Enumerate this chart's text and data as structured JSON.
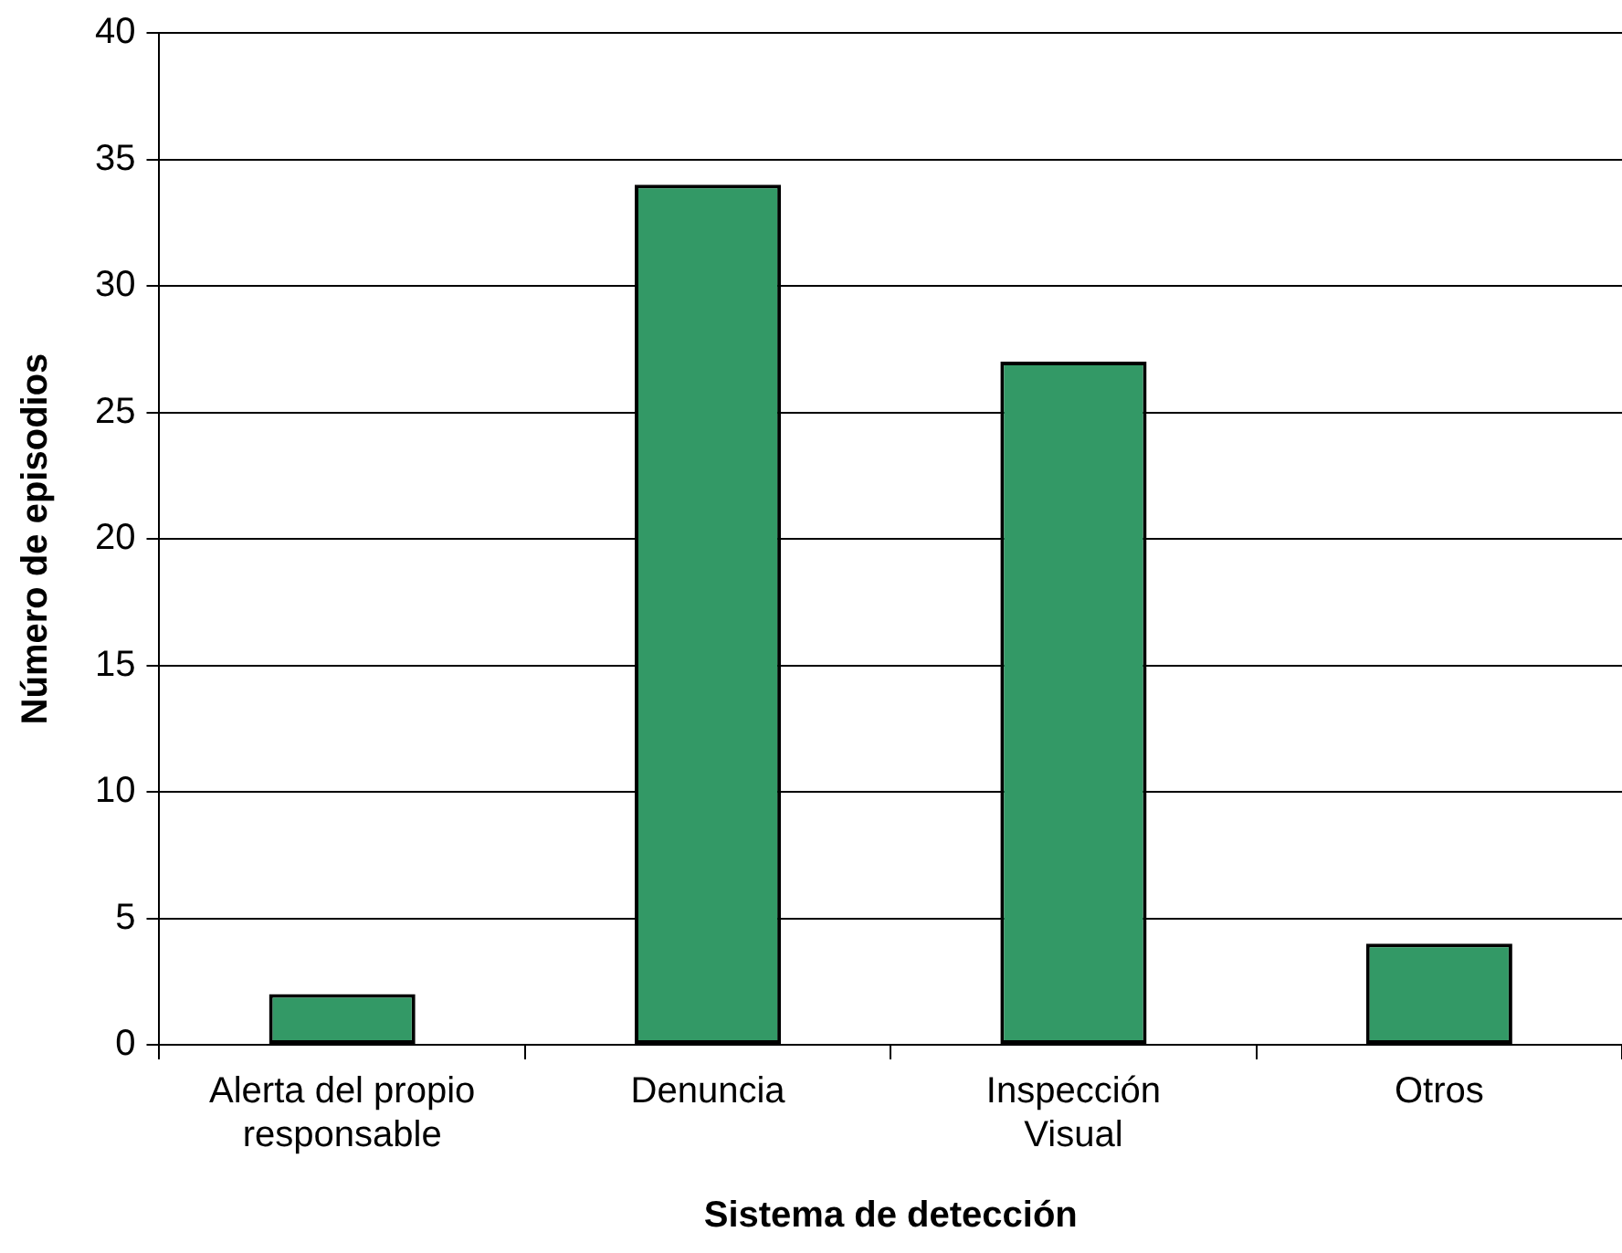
{
  "chart_data": {
    "type": "bar",
    "xlabel": "Sistema de detección",
    "ylabel": "Número de episodios",
    "categories": [
      "Alerta del propio responsable",
      "Denuncia",
      "Inspección Visual",
      "Otros"
    ],
    "values": [
      2,
      34,
      27,
      4
    ],
    "color": "#339966",
    "ylim": [
      0,
      40
    ],
    "yticks": [
      0,
      5,
      10,
      15,
      20,
      25,
      30,
      35,
      40
    ],
    "grid": "y"
  }
}
